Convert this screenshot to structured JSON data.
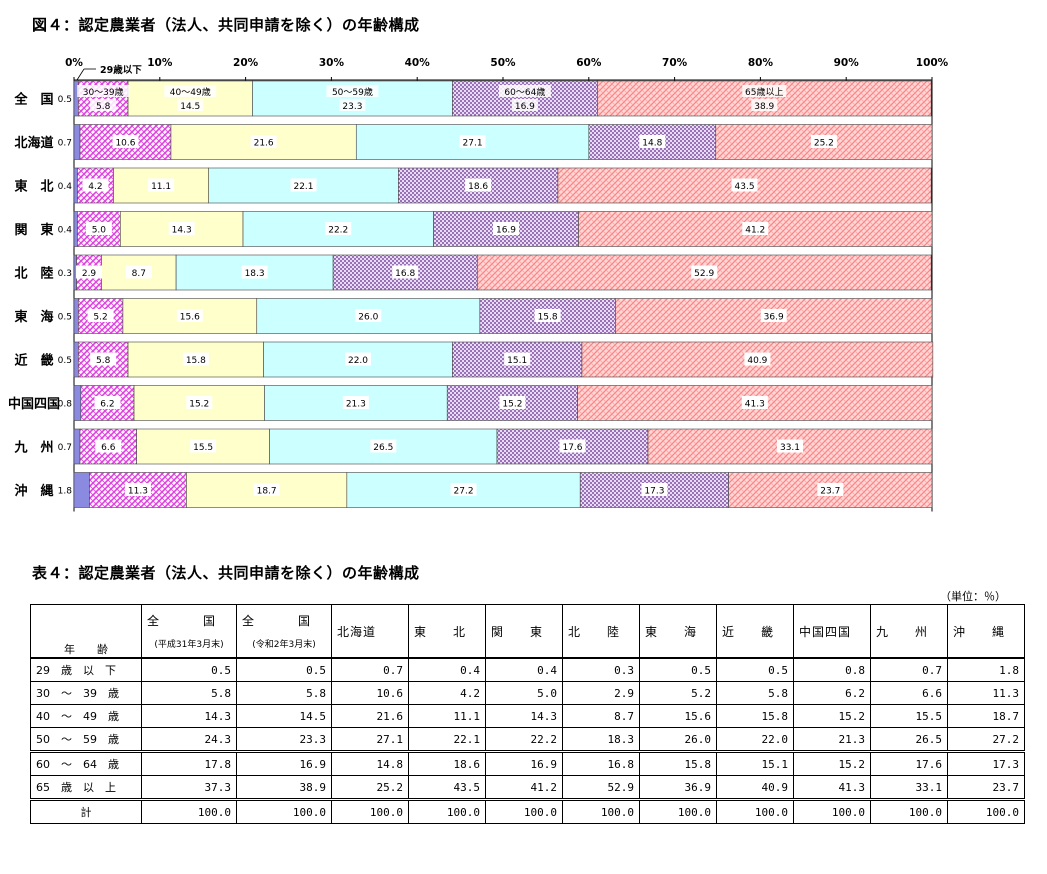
{
  "figure_title": "図４：認定農業者（法人、共同申請を除く）の年齢構成",
  "table_title": "表４：認定農業者（法人、共同申請を除く）の年齢構成",
  "unit_label": "（単位：％）",
  "chart_data": {
    "type": "bar",
    "orientation": "horizontal-stacked-100",
    "x_ticks": [
      "0%",
      "10%",
      "20%",
      "30%",
      "40%",
      "50%",
      "60%",
      "70%",
      "80%",
      "90%",
      "100%"
    ],
    "xlim": [
      0,
      100
    ],
    "categories": [
      "全　国",
      "北海道",
      "東　北",
      "関　東",
      "北　陸",
      "東　海",
      "近　畿",
      "中国四国",
      "九　州",
      "沖　縄"
    ],
    "series": [
      {
        "name": "29歳以下",
        "color": "#8a8ae0",
        "values": [
          0.5,
          0.7,
          0.4,
          0.4,
          0.3,
          0.5,
          0.5,
          0.8,
          0.7,
          1.8
        ]
      },
      {
        "name": "30～39歳",
        "color": "#ff66ff",
        "values": [
          5.8,
          10.6,
          4.2,
          5.0,
          2.9,
          5.2,
          5.8,
          6.2,
          6.6,
          11.3
        ]
      },
      {
        "name": "40～49歳",
        "color": "#ffffcc",
        "values": [
          14.5,
          21.6,
          11.1,
          14.3,
          8.7,
          15.6,
          15.8,
          15.2,
          15.5,
          18.7
        ]
      },
      {
        "name": "50～59歳",
        "color": "#ccffff",
        "values": [
          23.3,
          27.1,
          22.1,
          22.2,
          18.3,
          26.0,
          22.0,
          21.3,
          26.5,
          27.2
        ]
      },
      {
        "name": "60～64歳",
        "color": "#aa88cc",
        "values": [
          16.9,
          14.8,
          18.6,
          16.9,
          16.8,
          15.8,
          15.1,
          15.2,
          17.6,
          17.3
        ]
      },
      {
        "name": "65歳以上",
        "color": "#ff9999",
        "values": [
          38.9,
          25.2,
          43.5,
          41.2,
          52.9,
          36.9,
          40.9,
          41.3,
          33.1,
          23.7
        ]
      }
    ],
    "first_bar_labels": [
      "30～39歳",
      "40～49歳",
      "50～59歳",
      "60～64歳",
      "65歳以上"
    ],
    "callout_label": "29歳以下",
    "grid": false,
    "legend": "none"
  },
  "table": {
    "header_row1": [
      {
        "top": "全　国",
        "sub": "(平成31年3月末)"
      },
      {
        "top": "全　国",
        "sub": "(令和2年3月末)"
      }
    ],
    "header_regions": [
      "北海道",
      "東　　北",
      "関　　東",
      "北　　陸",
      "東　　海",
      "近　　畿",
      "中国四国",
      "九　　州",
      "沖　　縄"
    ],
    "header_left": "年　　齢",
    "rows": [
      {
        "label": "29　歳　以　下",
        "values": [
          "0.5",
          "0.5",
          "0.7",
          "0.4",
          "0.4",
          "0.3",
          "0.5",
          "0.5",
          "0.8",
          "0.7",
          "1.8"
        ]
      },
      {
        "label": "30　～　39　歳",
        "values": [
          "5.8",
          "5.8",
          "10.6",
          "4.2",
          "5.0",
          "2.9",
          "5.2",
          "5.8",
          "6.2",
          "6.6",
          "11.3"
        ]
      },
      {
        "label": "40　～　49　歳",
        "values": [
          "14.3",
          "14.5",
          "21.6",
          "11.1",
          "14.3",
          "8.7",
          "15.6",
          "15.8",
          "15.2",
          "15.5",
          "18.7"
        ]
      },
      {
        "label": "50　～　59　歳",
        "values": [
          "24.3",
          "23.3",
          "27.1",
          "22.1",
          "22.2",
          "18.3",
          "26.0",
          "22.0",
          "21.3",
          "26.5",
          "27.2"
        ]
      },
      {
        "label": "60　～　64　歳",
        "values": [
          "17.8",
          "16.9",
          "14.8",
          "18.6",
          "16.9",
          "16.8",
          "15.8",
          "15.1",
          "15.2",
          "17.6",
          "17.3"
        ]
      },
      {
        "label": "65　歳　以　上",
        "values": [
          "37.3",
          "38.9",
          "25.2",
          "43.5",
          "41.2",
          "52.9",
          "36.9",
          "40.9",
          "41.3",
          "33.1",
          "23.7"
        ]
      },
      {
        "label": "計",
        "values": [
          "100.0",
          "100.0",
          "100.0",
          "100.0",
          "100.0",
          "100.0",
          "100.0",
          "100.0",
          "100.0",
          "100.0",
          "100.0"
        ]
      }
    ]
  }
}
